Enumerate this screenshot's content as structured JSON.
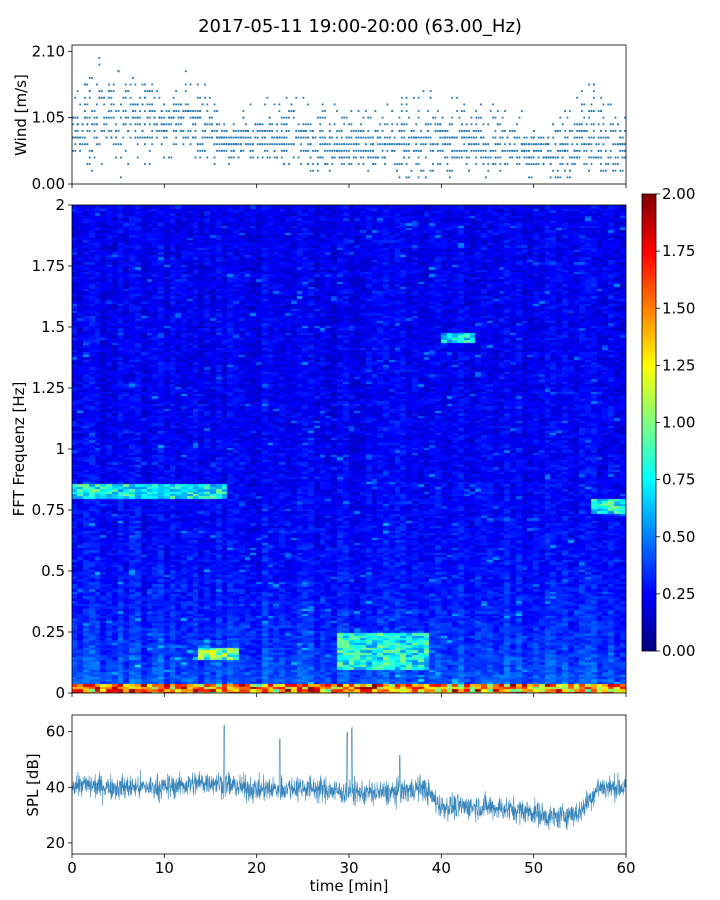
{
  "title": "2017-05-11 19:00-20:00 (63.00_Hz)",
  "chart_data": [
    {
      "type": "scatter",
      "ylabel": "Wind [m/s]",
      "xlim": [
        0,
        60
      ],
      "ylim": [
        0,
        2.2
      ],
      "yticks": [
        "0.00",
        "1.05",
        "2.10"
      ],
      "ytick_values": [
        0,
        1.05,
        2.1
      ],
      "marker_color": "#1f77b4",
      "grid": false,
      "envelope": {
        "x": [
          0,
          3,
          6,
          9,
          12,
          13,
          15,
          17,
          20,
          25,
          30,
          33,
          38,
          41,
          44,
          48,
          51,
          53,
          56,
          60
        ],
        "max": [
          1.4,
          2.1,
          1.8,
          1.6,
          1.7,
          1.9,
          1.5,
          1.0,
          1.3,
          1.4,
          1.2,
          1.2,
          1.6,
          1.4,
          1.4,
          1.2,
          1.0,
          1.2,
          1.6,
          1.3
        ],
        "median": [
          0.8,
          1.0,
          1.0,
          0.95,
          1.0,
          1.0,
          0.8,
          0.6,
          0.75,
          0.7,
          0.6,
          0.6,
          0.65,
          0.7,
          0.7,
          0.6,
          0.45,
          0.5,
          0.7,
          0.6
        ]
      }
    },
    {
      "type": "heatmap",
      "ylabel": "FFT Frequenz [Hz]",
      "xlim": [
        0,
        60
      ],
      "ylim": [
        0,
        2
      ],
      "yticks": [
        "0",
        "0.25",
        "0.5",
        "0.75",
        "1",
        "1.25",
        "1.5",
        "1.75",
        "2"
      ],
      "ytick_values": [
        0,
        0.25,
        0.5,
        0.75,
        1,
        1.25,
        1.5,
        1.75,
        2
      ],
      "colormap": "jet",
      "colorbar": {
        "range": [
          0,
          2
        ],
        "ticks": [
          "0.00",
          "0.25",
          "0.50",
          "0.75",
          "1.00",
          "1.25",
          "1.50",
          "1.75",
          "2.00"
        ],
        "tick_values": [
          0,
          0.25,
          0.5,
          0.75,
          1,
          1.25,
          1.5,
          1.75,
          2
        ]
      },
      "features": [
        {
          "freq": [
            0.8,
            0.86
          ],
          "time": [
            0,
            17
          ],
          "level": 0.85
        },
        {
          "freq": [
            0.74,
            0.8
          ],
          "time": [
            56,
            60
          ],
          "level": 0.85
        },
        {
          "freq": [
            0.14,
            0.19
          ],
          "time": [
            14,
            18
          ],
          "level": 1.05
        },
        {
          "freq": [
            0.1,
            0.25
          ],
          "time": [
            29,
            39
          ],
          "level": 0.85
        },
        {
          "freq": [
            0.0,
            0.04
          ],
          "time": [
            0,
            60
          ],
          "level": 1.5
        },
        {
          "freq": [
            1.44,
            1.48
          ],
          "time": [
            40,
            44
          ],
          "level": 0.8
        }
      ]
    },
    {
      "type": "line",
      "ylabel": "SPL [dB]",
      "xlabel": "time [min]",
      "xlim": [
        0,
        60
      ],
      "ylim": [
        16,
        66
      ],
      "yticks": [
        "20",
        "40",
        "60"
      ],
      "ytick_values": [
        20,
        40,
        60
      ],
      "xticks": [
        "0",
        "10",
        "20",
        "30",
        "40",
        "50",
        "60"
      ],
      "xtick_values": [
        0,
        10,
        20,
        30,
        40,
        50,
        60
      ],
      "line_color": "#1f77b4",
      "grid": false,
      "envelope": {
        "x": [
          0,
          5,
          10,
          15,
          20,
          25,
          30,
          35,
          38,
          40,
          45,
          50,
          52,
          55,
          57,
          60
        ],
        "median": [
          41,
          40,
          40,
          42,
          39,
          40,
          38,
          38,
          40,
          33,
          33,
          31,
          29,
          31,
          40,
          40
        ]
      },
      "spikes": [
        {
          "x": 16.5,
          "y": 63
        },
        {
          "x": 22.5,
          "y": 58
        },
        {
          "x": 29.8,
          "y": 60
        },
        {
          "x": 30.3,
          "y": 62
        },
        {
          "x": 35.5,
          "y": 52
        }
      ]
    }
  ]
}
